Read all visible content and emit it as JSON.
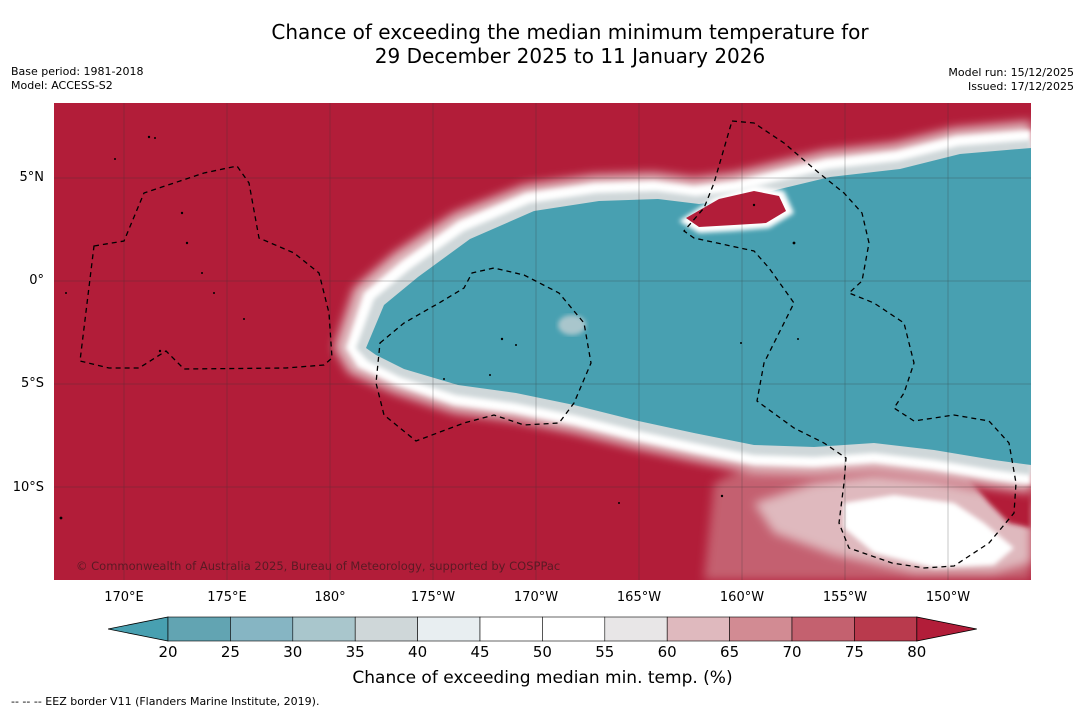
{
  "title": {
    "line1": "Chance of exceeding the median minimum temperature for",
    "line2": "29 December 2025 to 11 January 2026"
  },
  "meta": {
    "base_period": "Base period: 1981-2018",
    "model": "Model: ACCESS-S2",
    "model_run": "Model run: 15/12/2025",
    "issued": "Issued: 17/12/2025"
  },
  "map": {
    "lat_labels": [
      "5°N",
      "0°",
      "5°S",
      "10°S"
    ],
    "lon_labels": [
      "170°E",
      "175°E",
      "180°",
      "175°W",
      "170°W",
      "165°W",
      "160°W",
      "155°W",
      "150°W"
    ],
    "copyright": "© Commonwealth of Australia 2025, Bureau of Meteorology, supported by COSPPac"
  },
  "colorbar": {
    "ticks": [
      "20",
      "25",
      "30",
      "35",
      "40",
      "45",
      "50",
      "55",
      "60",
      "65",
      "70",
      "75",
      "80"
    ],
    "colors": [
      "#62a4b2",
      "#86b5c3",
      "#a9c6cc",
      "#cfd7d9",
      "#e8eef1",
      "#ffffff",
      "#ffffff",
      "#e8e6e7",
      "#dfb9be",
      "#d28b93",
      "#c4616f",
      "#b93a4d"
    ],
    "under_color": "#48a0b1",
    "over_color": "#b21d39",
    "label": "Chance of exceeding median min. temp. (%)"
  },
  "colors": {
    "warm": "#b21d39",
    "cool": "#48a0b1"
  },
  "eez_note": "--  --  -- EEZ border V11 (Flanders Marine Institute, 2019)."
}
